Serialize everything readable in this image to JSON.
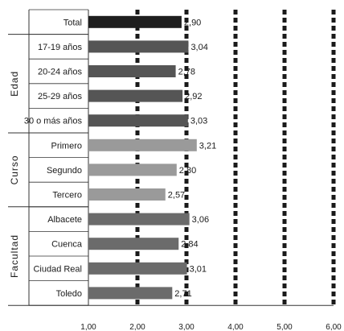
{
  "chart_data": {
    "type": "bar",
    "orientation": "horizontal",
    "title": "",
    "xlabel": "",
    "ylabel": "",
    "xlim": [
      1,
      6
    ],
    "x_ticks": [
      "1,00",
      "2,00",
      "3,00",
      "4,00",
      "5,00",
      "6,00"
    ],
    "grid": "vertical dashed lines at 2,00 to 6,00",
    "groups": [
      {
        "name": "",
        "categories": [
          "Total"
        ],
        "values": [
          2.9
        ],
        "value_labels": [
          "2,90"
        ],
        "color": "#1e1e1e"
      },
      {
        "name": "Edad",
        "categories": [
          "17-19 años",
          "20-24 años",
          "25-29 años",
          "30 o más años"
        ],
        "values": [
          3.04,
          2.78,
          2.92,
          3.03
        ],
        "value_labels": [
          "3,04",
          "2,78",
          "2,92",
          "3,03"
        ],
        "color": "#555555"
      },
      {
        "name": "Curso",
        "categories": [
          "Primero",
          "Segundo",
          "Tercero"
        ],
        "values": [
          3.21,
          2.8,
          2.57
        ],
        "value_labels": [
          "3,21",
          "2,80",
          "2,57"
        ],
        "color": "#9a9a9a"
      },
      {
        "name": "Facultad",
        "categories": [
          "Albacete",
          "Cuenca",
          "Ciudad Real",
          "Toledo"
        ],
        "values": [
          3.06,
          2.84,
          3.01,
          2.71
        ],
        "value_labels": [
          "3,06",
          "2,84",
          "3,01",
          "2,71"
        ],
        "color": "#6b6b6b"
      }
    ]
  }
}
